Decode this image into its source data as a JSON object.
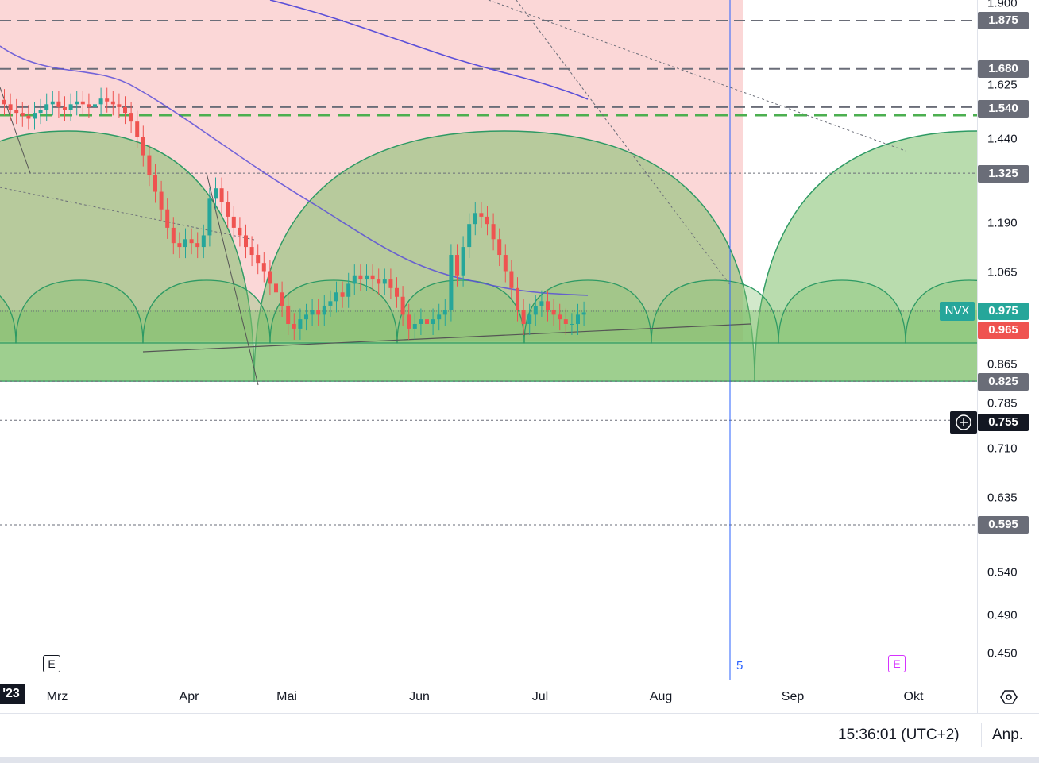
{
  "symbol": "NVX",
  "colors": {
    "up": "#26a69a",
    "down": "#ef5350",
    "ma": "#5b4fd8",
    "red_zone": "#f9caca",
    "arc_fill": "#7fbf6b",
    "arc_stroke": "#2e9a64",
    "axis_gray": "#6a6d78",
    "symbol_badge": "#26a69a",
    "price_badge": "#ef5350",
    "crosshair_badge": "#131722",
    "vline": "#2962ff",
    "green_dash": "#4caf50",
    "e_badge_1": "#131722",
    "e_badge_2": "#d633ff"
  },
  "price_axis": {
    "ticks": [
      "1.900",
      "1.625",
      "1.440",
      "1.190",
      "1.065",
      "0.865",
      "0.785",
      "0.710",
      "0.635",
      "0.540",
      "0.490",
      "0.450"
    ],
    "labels": [
      {
        "text": "1.875",
        "style": "gray"
      },
      {
        "text": "1.680",
        "style": "gray"
      },
      {
        "text": "1.540",
        "style": "gray"
      },
      {
        "text": "1.325",
        "style": "gray"
      },
      {
        "text": "0.975",
        "style": "green"
      },
      {
        "text": "0.965",
        "style": "red"
      },
      {
        "text": "0.825",
        "style": "gray"
      },
      {
        "text": "0.755",
        "style": "dark"
      },
      {
        "text": "0.595",
        "style": "gray"
      }
    ]
  },
  "time_axis": {
    "labels": [
      "'23",
      "Mrz",
      "Apr",
      "Mai",
      "Jun",
      "Jul",
      "Aug",
      "Sep",
      "Okt"
    ]
  },
  "markers": {
    "e_badge": "E",
    "e_badge_2": "E",
    "vline_label": "5"
  },
  "status_bar": {
    "time": "15:36:01 (UTC+2)",
    "adjust_label": "Anp."
  },
  "chart_data": {
    "type": "candlestick",
    "symbol": "NVX",
    "last_price": 0.965,
    "ylim": [
      0.44,
      1.92
    ],
    "y_scale": "log",
    "x_labels": [
      "'23",
      "Mrz",
      "Apr",
      "Mai",
      "Jun",
      "Jul",
      "Aug",
      "Sep",
      "Okt"
    ],
    "candles_close": [
      1.55,
      1.53,
      1.52,
      1.51,
      1.5,
      1.52,
      1.53,
      1.55,
      1.56,
      1.54,
      1.53,
      1.55,
      1.56,
      1.55,
      1.54,
      1.55,
      1.57,
      1.56,
      1.55,
      1.54,
      1.52,
      1.49,
      1.44,
      1.38,
      1.32,
      1.27,
      1.22,
      1.17,
      1.13,
      1.12,
      1.14,
      1.13,
      1.12,
      1.15,
      1.25,
      1.28,
      1.24,
      1.2,
      1.17,
      1.15,
      1.12,
      1.1,
      1.08,
      1.06,
      1.03,
      1.01,
      0.98,
      0.94,
      0.93,
      0.95,
      0.96,
      0.97,
      0.96,
      0.98,
      0.99,
      1.01,
      1.0,
      1.03,
      1.05,
      1.04,
      1.05,
      1.04,
      1.03,
      1.04,
      1.02,
      1.0,
      0.96,
      0.93,
      0.94,
      0.95,
      0.94,
      0.95,
      0.96,
      0.97,
      1.1,
      1.05,
      1.12,
      1.18,
      1.21,
      1.2,
      1.18,
      1.14,
      1.1,
      1.06,
      1.02,
      0.97,
      0.94,
      0.96,
      0.98,
      0.99,
      0.97,
      0.96,
      0.95,
      0.94,
      0.94,
      0.96,
      0.965
    ],
    "candles_note_removed": true,
    "horizontal_levels": [
      1.875,
      1.68,
      1.54,
      1.52,
      1.325,
      0.825,
      0.755,
      0.595
    ],
    "support_zone": [
      0.825,
      0.915
    ]
  }
}
